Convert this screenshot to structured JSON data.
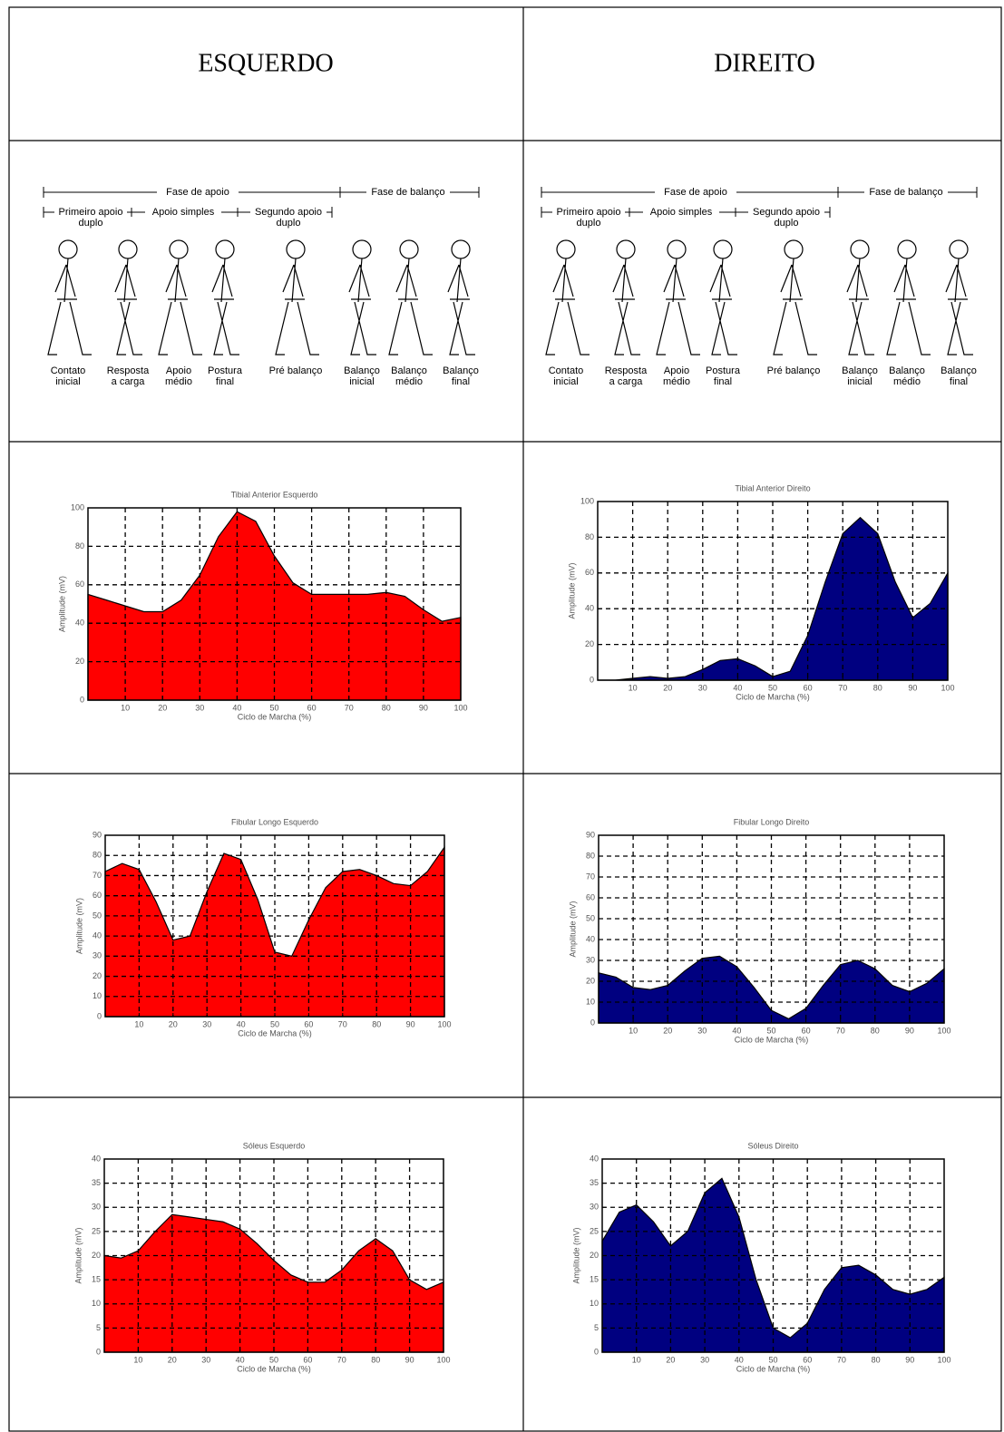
{
  "headers": [
    "ESQUERDO",
    "DIREITO"
  ],
  "gait": {
    "phase_support": "Fase de apoio",
    "phase_swing": "Fase de balanço",
    "subphases": [
      "Primeiro apoio duplo",
      "Apoio simples",
      "Segundo apoio duplo"
    ],
    "events": [
      "Contato inicial",
      "Resposta a carga",
      "Apoio médio",
      "Postura final",
      "Pré balanço",
      "Balanço inicial",
      "Balanço médio",
      "Balanço final"
    ]
  },
  "chart_data": [
    {
      "type": "area",
      "title": "Tibial Anterior Esquerdo",
      "x_label": "Ciclo de Marcha (%)",
      "y_label": "Amplitude (mV)",
      "color": "#ff0000",
      "grid": true,
      "x": [
        0,
        5,
        10,
        15,
        20,
        25,
        30,
        35,
        40,
        45,
        50,
        55,
        60,
        65,
        70,
        75,
        80,
        85,
        90,
        95,
        100
      ],
      "values": [
        55,
        52,
        49,
        46,
        46,
        52,
        65,
        85,
        98,
        93,
        75,
        61,
        55,
        55,
        55,
        55,
        56,
        54,
        47,
        41,
        43
      ],
      "xlim": [
        0,
        100
      ],
      "xticks": [
        10,
        20,
        30,
        40,
        50,
        60,
        70,
        80,
        90,
        100
      ],
      "ylim": [
        0,
        100
      ],
      "yticks": [
        0,
        20,
        40,
        60,
        80,
        100
      ]
    },
    {
      "type": "area",
      "title": "Tibial Anterior Direito",
      "x_label": "Ciclo de Marcha (%)",
      "y_label": "Amplitude (mV)",
      "color": "#000080",
      "grid": true,
      "x": [
        0,
        5,
        10,
        15,
        20,
        25,
        30,
        35,
        40,
        45,
        50,
        55,
        60,
        65,
        70,
        75,
        80,
        85,
        90,
        95,
        100
      ],
      "values": [
        0,
        0,
        1,
        2,
        1,
        2,
        6,
        11,
        12,
        8,
        2,
        5,
        25,
        55,
        82,
        91,
        82,
        55,
        35,
        43,
        60
      ],
      "xlim": [
        0,
        100
      ],
      "xticks": [
        10,
        20,
        30,
        40,
        50,
        60,
        70,
        80,
        90,
        100
      ],
      "ylim": [
        0,
        100
      ],
      "yticks": [
        0,
        20,
        40,
        60,
        80,
        100
      ]
    },
    {
      "type": "area",
      "title": "Fibular Longo Esquerdo",
      "x_label": "Ciclo de Marcha (%)",
      "y_label": "Amplitude (mV)",
      "color": "#ff0000",
      "grid": true,
      "x": [
        0,
        5,
        10,
        15,
        20,
        25,
        30,
        35,
        40,
        45,
        50,
        55,
        60,
        65,
        70,
        75,
        80,
        85,
        90,
        95,
        100
      ],
      "values": [
        72,
        76,
        73,
        57,
        38,
        40,
        62,
        81,
        78,
        58,
        32,
        30,
        48,
        64,
        72,
        73,
        70,
        66,
        65,
        72,
        84
      ],
      "xlim": [
        0,
        100
      ],
      "xticks": [
        10,
        20,
        30,
        40,
        50,
        60,
        70,
        80,
        90,
        100
      ],
      "ylim": [
        0,
        90
      ],
      "yticks": [
        0,
        10,
        20,
        30,
        40,
        50,
        60,
        70,
        80,
        90
      ]
    },
    {
      "type": "area",
      "title": "Fibular Longo Direito",
      "x_label": "Ciclo de Marcha (%)",
      "y_label": "Amplitude (mV)",
      "color": "#000080",
      "grid": true,
      "x": [
        0,
        5,
        10,
        15,
        20,
        25,
        30,
        35,
        40,
        45,
        50,
        55,
        60,
        65,
        70,
        75,
        80,
        85,
        90,
        95,
        100
      ],
      "values": [
        24,
        22,
        17,
        16,
        18,
        25,
        31,
        32,
        27,
        17,
        6,
        2,
        7,
        18,
        28,
        30,
        26,
        18,
        15,
        19,
        26
      ],
      "xlim": [
        0,
        100
      ],
      "xticks": [
        10,
        20,
        30,
        40,
        50,
        60,
        70,
        80,
        90,
        100
      ],
      "ylim": [
        0,
        90
      ],
      "yticks": [
        0,
        10,
        20,
        30,
        40,
        50,
        60,
        70,
        80,
        90
      ]
    },
    {
      "type": "area",
      "title": "Sóleus Esquerdo",
      "x_label": "Ciclo de Marcha (%)",
      "y_label": "Amplitude (mV)",
      "color": "#ff0000",
      "grid": true,
      "x": [
        0,
        5,
        10,
        15,
        20,
        25,
        30,
        35,
        40,
        45,
        50,
        55,
        60,
        65,
        70,
        75,
        80,
        85,
        90,
        95,
        100
      ],
      "values": [
        20,
        19.5,
        21,
        25,
        28.5,
        28,
        27.5,
        27,
        25.5,
        22.5,
        19,
        16,
        14.5,
        14.5,
        17,
        21,
        23.5,
        21,
        15,
        13,
        14.5
      ],
      "xlim": [
        0,
        100
      ],
      "xticks": [
        10,
        20,
        30,
        40,
        50,
        60,
        70,
        80,
        90,
        100
      ],
      "ylim": [
        0,
        40
      ],
      "yticks": [
        0,
        5,
        10,
        15,
        20,
        25,
        30,
        35,
        40
      ]
    },
    {
      "type": "area",
      "title": "Sóleus Direito",
      "x_label": "Ciclo de Marcha (%)",
      "y_label": "Amplitude (mV)",
      "color": "#000080",
      "grid": true,
      "x": [
        0,
        5,
        10,
        15,
        20,
        25,
        30,
        35,
        40,
        45,
        50,
        55,
        60,
        65,
        70,
        75,
        80,
        85,
        90,
        95,
        100
      ],
      "values": [
        23,
        29,
        30.5,
        27,
        22,
        25,
        33,
        36,
        28,
        15,
        5,
        3,
        6,
        13,
        17.5,
        18,
        16,
        13,
        12,
        13,
        15.5
      ],
      "xlim": [
        0,
        100
      ],
      "xticks": [
        10,
        20,
        30,
        40,
        50,
        60,
        70,
        80,
        90,
        100
      ],
      "ylim": [
        0,
        40
      ],
      "yticks": [
        0,
        5,
        10,
        15,
        20,
        25,
        30,
        35,
        40
      ]
    }
  ]
}
